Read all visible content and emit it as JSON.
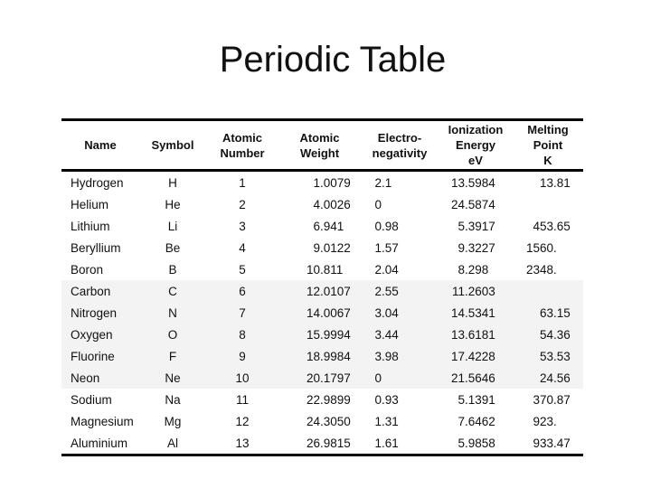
{
  "slide": {
    "title": "Periodic Table"
  },
  "colors": {
    "background": "#ffffff",
    "text": "#111111",
    "table_rule": "#000000",
    "row_band": "#f3f3f3"
  },
  "table": {
    "headers": {
      "name": "Name",
      "symbol": "Symbol",
      "atomic_number": "Atomic\nNumber",
      "atomic_weight": "Atomic\nWeight",
      "electronegativity": "Electro-\nnegativity",
      "ionization_energy": "Ionization\nEnergy\neV",
      "melting_point": "Melting\nPoint\nK"
    },
    "rows": [
      {
        "name": "Hydrogen",
        "symbol": "H",
        "atomic_number": "1",
        "atomic_weight": "1.0079",
        "electronegativity": "2.1",
        "ionization_energy": "13.5984",
        "melting_point": "13.81",
        "shaded": false
      },
      {
        "name": "Helium",
        "symbol": "He",
        "atomic_number": "2",
        "atomic_weight": "4.0026",
        "electronegativity": "0",
        "ionization_energy": "24.5874",
        "melting_point": "",
        "shaded": false
      },
      {
        "name": "Lithium",
        "symbol": "Li",
        "atomic_number": "3",
        "atomic_weight": "6.941",
        "electronegativity": "0.98",
        "ionization_energy": "5.3917",
        "melting_point": "453.65",
        "shaded": false
      },
      {
        "name": "Beryllium",
        "symbol": "Be",
        "atomic_number": "4",
        "atomic_weight": "9.0122",
        "electronegativity": "1.57",
        "ionization_energy": "9.3227",
        "melting_point": "1560.",
        "shaded": false
      },
      {
        "name": "Boron",
        "symbol": "B",
        "atomic_number": "5",
        "atomic_weight": "10.811",
        "electronegativity": "2.04",
        "ionization_energy": "8.298",
        "melting_point": "2348.",
        "shaded": false
      },
      {
        "name": "Carbon",
        "symbol": "C",
        "atomic_number": "6",
        "atomic_weight": "12.0107",
        "electronegativity": "2.55",
        "ionization_energy": "11.2603",
        "melting_point": "",
        "shaded": true
      },
      {
        "name": "Nitrogen",
        "symbol": "N",
        "atomic_number": "7",
        "atomic_weight": "14.0067",
        "electronegativity": "3.04",
        "ionization_energy": "14.5341",
        "melting_point": "63.15",
        "shaded": true
      },
      {
        "name": "Oxygen",
        "symbol": "O",
        "atomic_number": "8",
        "atomic_weight": "15.9994",
        "electronegativity": "3.44",
        "ionization_energy": "13.6181",
        "melting_point": "54.36",
        "shaded": true
      },
      {
        "name": "Fluorine",
        "symbol": "F",
        "atomic_number": "9",
        "atomic_weight": "18.9984",
        "electronegativity": "3.98",
        "ionization_energy": "17.4228",
        "melting_point": "53.53",
        "shaded": true
      },
      {
        "name": "Neon",
        "symbol": "Ne",
        "atomic_number": "10",
        "atomic_weight": "20.1797",
        "electronegativity": "0",
        "ionization_energy": "21.5646",
        "melting_point": "24.56",
        "shaded": true
      },
      {
        "name": "Sodium",
        "symbol": "Na",
        "atomic_number": "11",
        "atomic_weight": "22.9899",
        "electronegativity": "0.93",
        "ionization_energy": "5.1391",
        "melting_point": "370.87",
        "shaded": false
      },
      {
        "name": "Magnesium",
        "symbol": "Mg",
        "atomic_number": "12",
        "atomic_weight": "24.3050",
        "electronegativity": "1.31",
        "ionization_energy": "7.6462",
        "melting_point": "923.",
        "shaded": false
      },
      {
        "name": "Aluminium",
        "symbol": "Al",
        "atomic_number": "13",
        "atomic_weight": "26.9815",
        "electronegativity": "1.61",
        "ionization_energy": "5.9858",
        "melting_point": "933.47",
        "shaded": false
      }
    ]
  }
}
